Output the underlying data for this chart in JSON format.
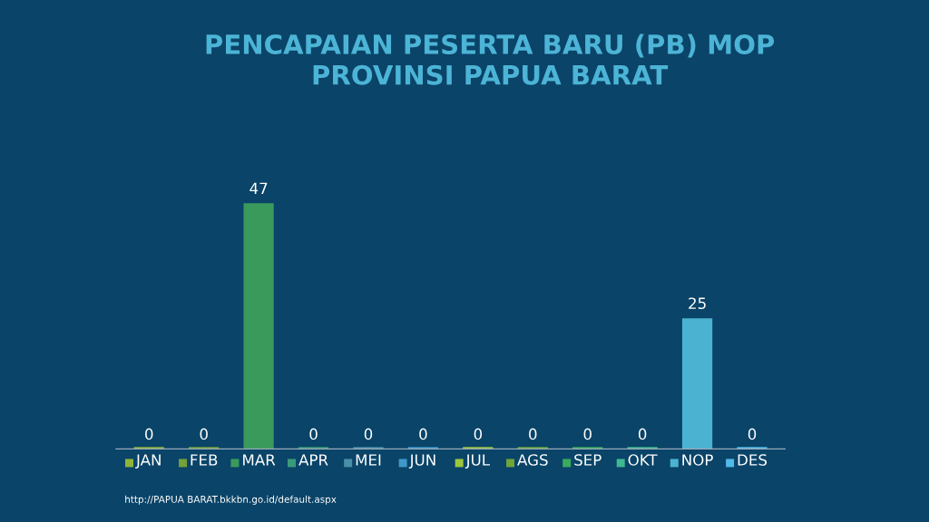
{
  "chart_data": {
    "type": "bar",
    "title": "PENCAPAIAN PESERTA BARU (PB) MOP\nPROVINSI PAPUA BARAT",
    "categories": [
      "JAN",
      "FEB",
      "MAR",
      "APR",
      "MEI",
      "JUN",
      "JUL",
      "AGS",
      "SEP",
      "OKT",
      "NOP",
      "DES"
    ],
    "values": [
      0,
      0,
      47,
      0,
      0,
      0,
      0,
      0,
      0,
      0,
      25,
      0
    ],
    "colors": [
      "#8fb43a",
      "#74a23a",
      "#3a9a5c",
      "#3a9b7c",
      "#4a8faa",
      "#3f98c8",
      "#9cc63e",
      "#6ea63a",
      "#3aab5e",
      "#40b892",
      "#4cb2d2",
      "#50bbea"
    ],
    "data_labels": true,
    "tick_labels": "x",
    "annotations": [
      "http://PAPUA BARAT.bkkbn.go.id/default.aspx"
    ]
  }
}
